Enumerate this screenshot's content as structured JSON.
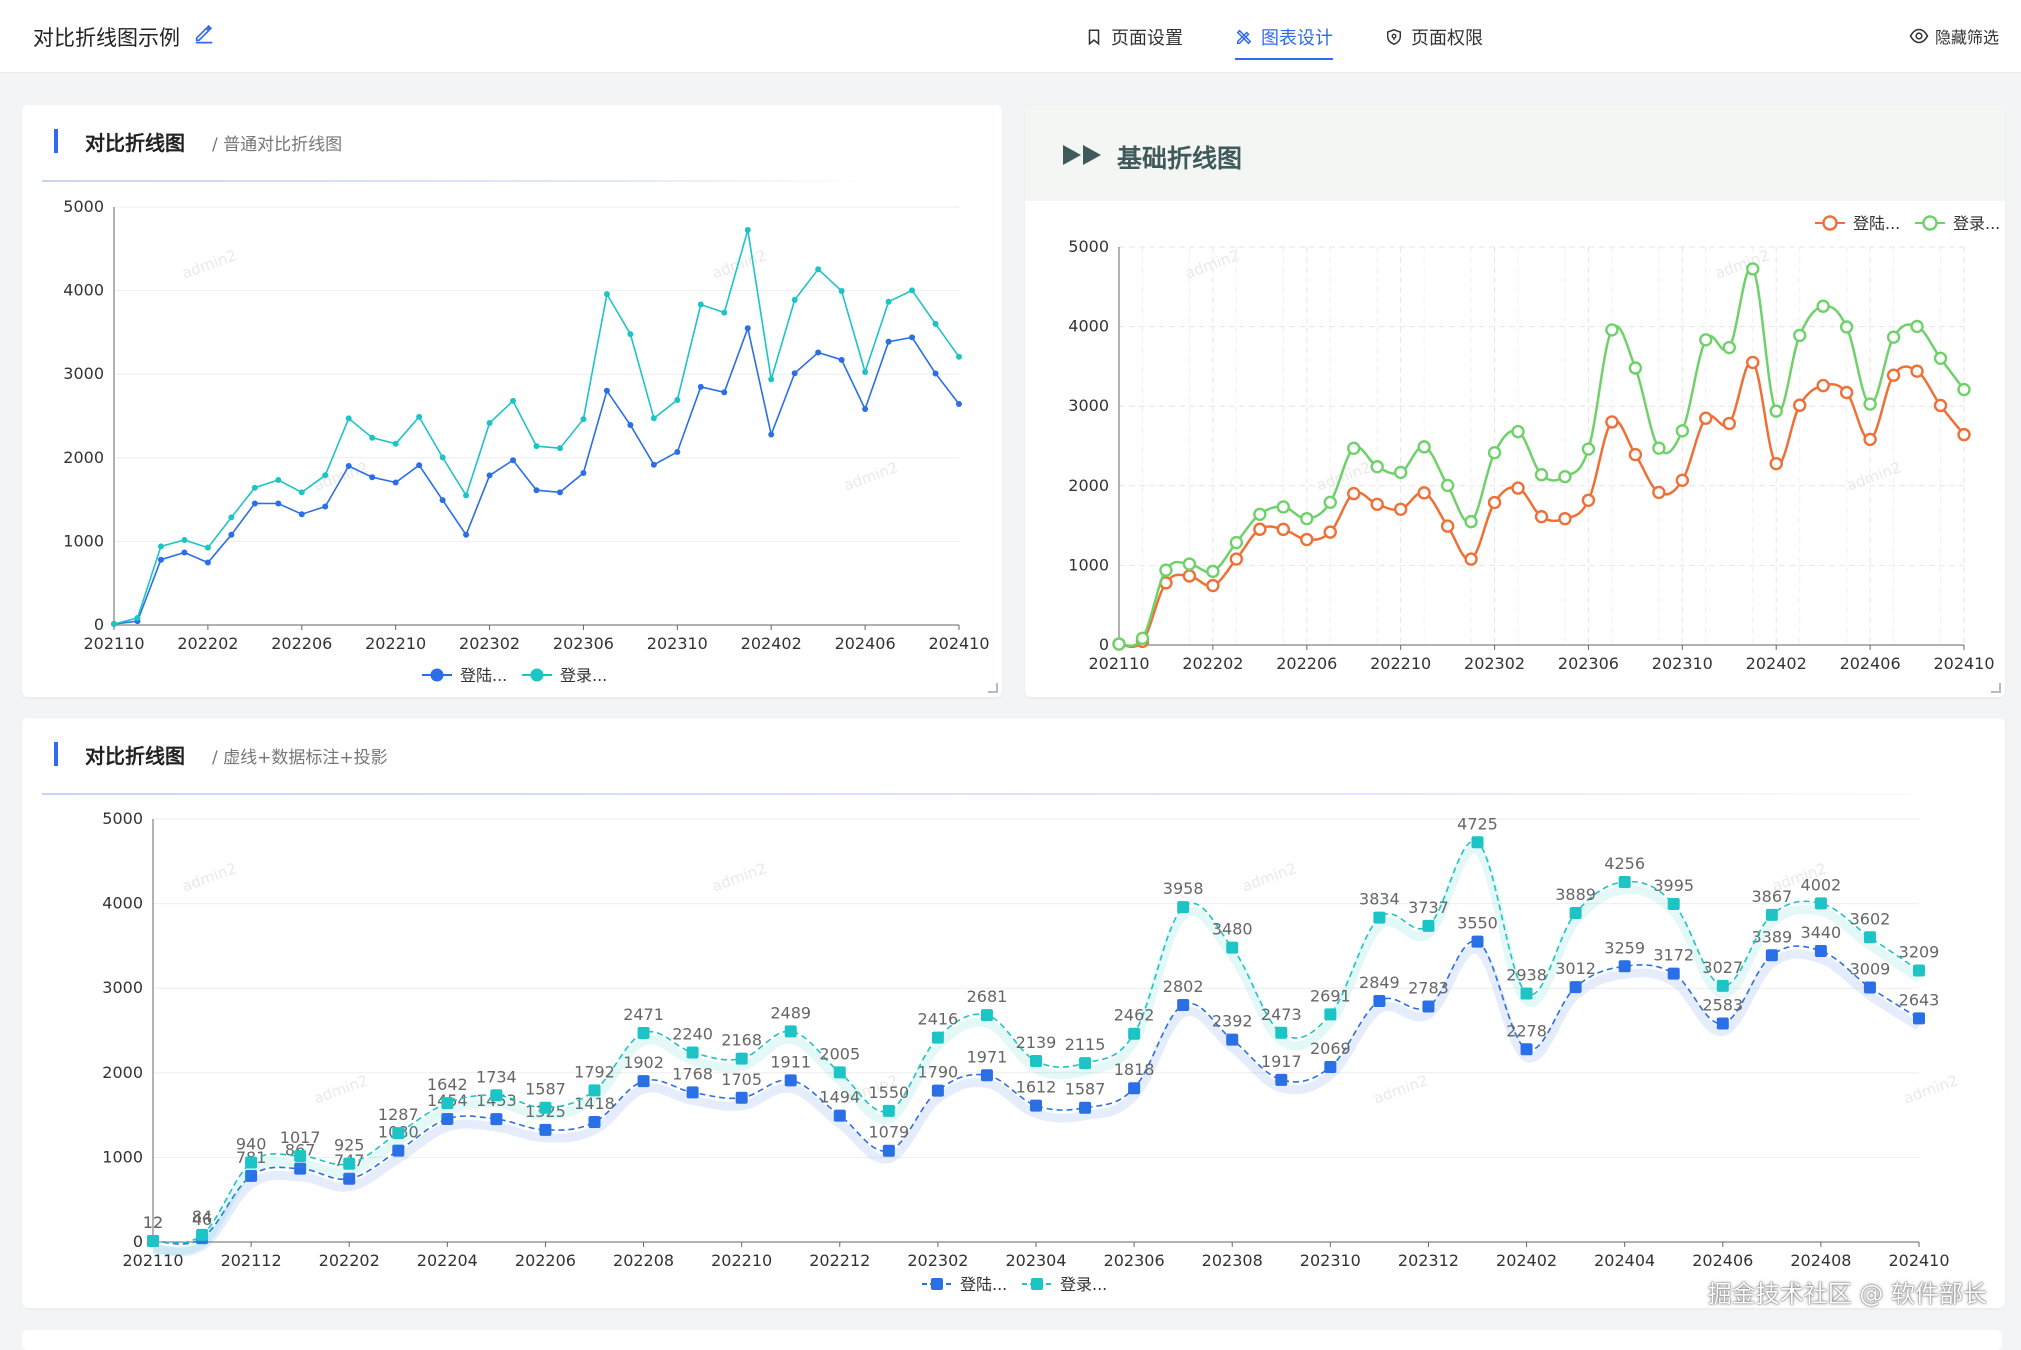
{
  "header": {
    "title": "对比折线图示例",
    "tabs": [
      {
        "label": "页面设置",
        "icon": "bookmark-icon",
        "active": false
      },
      {
        "label": "图表设计",
        "icon": "design-tools-icon",
        "active": true
      },
      {
        "label": "页面权限",
        "icon": "shield-icon",
        "active": false
      }
    ],
    "hide_filter": "隐藏筛选"
  },
  "cards": {
    "c1": {
      "title": "对比折线图",
      "subtitle": "/ 普通对比折线图"
    },
    "c2": {
      "title": "基础折线图"
    },
    "c3": {
      "title": "对比折线图",
      "subtitle": "/ 虚线+数据标注+投影"
    }
  },
  "watermark": "掘金技术社区 @ 软件部长",
  "bg_watermark": "admin2",
  "colors": {
    "accent": "#2f6bf0",
    "series1": "#2a6fe5",
    "series2": "#1dc4c6",
    "c2_series1": "#ef7036",
    "c2_series2": "#6fd16a"
  },
  "chart_data": [
    {
      "type": "line",
      "legend_position": "bottom",
      "x": [
        "202110",
        "202111",
        "202112",
        "202201",
        "202202",
        "202203",
        "202204",
        "202205",
        "202206",
        "202207",
        "202208",
        "202209",
        "202210",
        "202211",
        "202212",
        "202301",
        "202302",
        "202303",
        "202304",
        "202305",
        "202306",
        "202307",
        "202308",
        "202309",
        "202310",
        "202311",
        "202312",
        "202401",
        "202402",
        "202403",
        "202404",
        "202405",
        "202406",
        "202407",
        "202408",
        "202409",
        "202410"
      ],
      "x_tick_labels": [
        "202110",
        "202202",
        "202206",
        "202210",
        "202302",
        "202306",
        "202310",
        "202402",
        "202406",
        "202410"
      ],
      "series": [
        {
          "name": "登陆...",
          "values": [
            12,
            46,
            781,
            867,
            747,
            1080,
            1454,
            1453,
            1325,
            1418,
            1902,
            1768,
            1705,
            1911,
            1494,
            1079,
            1790,
            1971,
            1612,
            1587,
            1818,
            2802,
            2392,
            1917,
            2069,
            2849,
            2783,
            3550,
            2278,
            3012,
            3259,
            3172,
            2583,
            3389,
            3440,
            3009,
            2643
          ]
        },
        {
          "name": "登录...",
          "values": [
            12,
            84,
            940,
            1017,
            925,
            1287,
            1642,
            1734,
            1587,
            1792,
            2471,
            2240,
            2168,
            2489,
            2005,
            1550,
            2416,
            2681,
            2139,
            2115,
            2462,
            3958,
            3480,
            2473,
            2691,
            3834,
            3737,
            4725,
            2938,
            3889,
            4256,
            3995,
            3027,
            3867,
            4002,
            3602,
            3209
          ]
        }
      ],
      "yticks": [
        0,
        1000,
        2000,
        3000,
        4000,
        5000
      ],
      "ylim": [
        0,
        5000
      ]
    },
    {
      "type": "line",
      "smooth": true,
      "legend_position": "top-right",
      "x_tick_labels": [
        "202110",
        "202202",
        "202206",
        "202210",
        "202302",
        "202306",
        "202310",
        "202402",
        "202406",
        "202410"
      ],
      "series": [
        {
          "name": "登陆...",
          "values": [
            12,
            46,
            781,
            867,
            747,
            1080,
            1454,
            1453,
            1325,
            1418,
            1902,
            1768,
            1705,
            1911,
            1494,
            1079,
            1790,
            1971,
            1612,
            1587,
            1818,
            2802,
            2392,
            1917,
            2069,
            2849,
            2783,
            3550,
            2278,
            3012,
            3259,
            3172,
            2583,
            3389,
            3440,
            3009,
            2643
          ]
        },
        {
          "name": "登录...",
          "values": [
            12,
            84,
            940,
            1017,
            925,
            1287,
            1642,
            1734,
            1587,
            1792,
            2471,
            2240,
            2168,
            2489,
            2005,
            1550,
            2416,
            2681,
            2139,
            2115,
            2462,
            3958,
            3480,
            2473,
            2691,
            3834,
            3737,
            4725,
            2938,
            3889,
            4256,
            3995,
            3027,
            3867,
            4002,
            3602,
            3209
          ]
        }
      ],
      "yticks": [
        0,
        1000,
        2000,
        3000,
        4000,
        5000
      ],
      "ylim": [
        0,
        5000
      ],
      "grid": true
    },
    {
      "type": "line",
      "smooth": true,
      "dashed": true,
      "data_labels": true,
      "legend_position": "bottom",
      "x_tick_labels": [
        "202110",
        "202112",
        "202202",
        "202204",
        "202206",
        "202208",
        "202210",
        "202212",
        "202302",
        "202304",
        "202306",
        "202308",
        "202310",
        "202312",
        "202402",
        "202404",
        "202406",
        "202408",
        "202410"
      ],
      "series": [
        {
          "name": "登陆...",
          "values": [
            12,
            46,
            781,
            867,
            747,
            1080,
            1454,
            1453,
            1325,
            1418,
            1902,
            1768,
            1705,
            1911,
            1494,
            1079,
            1790,
            1971,
            1612,
            1587,
            1818,
            2802,
            2392,
            1917,
            2069,
            2849,
            2783,
            3550,
            2278,
            3012,
            3259,
            3172,
            2583,
            3389,
            3440,
            3009,
            2643
          ]
        },
        {
          "name": "登录...",
          "values": [
            12,
            84,
            940,
            1017,
            925,
            1287,
            1642,
            1734,
            1587,
            1792,
            2471,
            2240,
            2168,
            2489,
            2005,
            1550,
            2416,
            2681,
            2139,
            2115,
            2462,
            3958,
            3480,
            2473,
            2691,
            3834,
            3737,
            4725,
            2938,
            3889,
            4256,
            3995,
            3027,
            3867,
            4002,
            3602,
            3209
          ]
        }
      ],
      "yticks": [
        0,
        1000,
        2000,
        3000,
        4000,
        5000
      ],
      "ylim": [
        0,
        5000
      ]
    }
  ]
}
